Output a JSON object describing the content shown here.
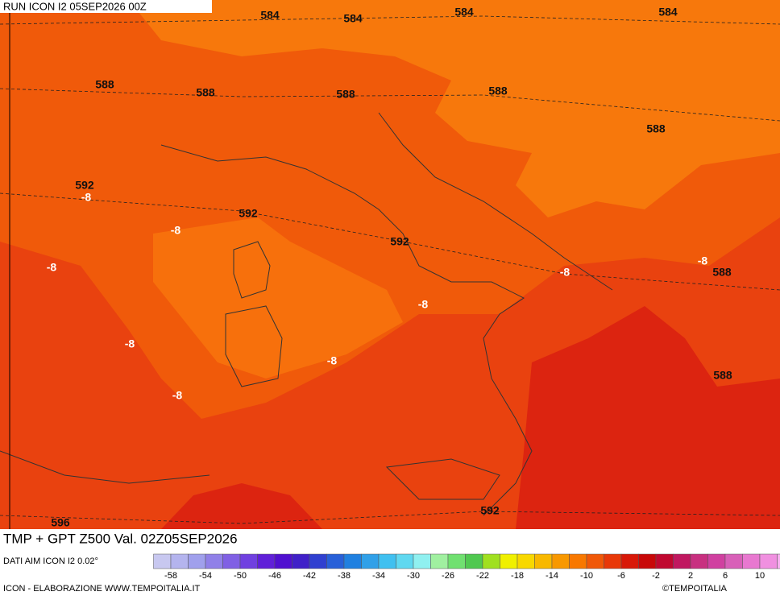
{
  "header": {
    "run": "RUN ICON I2 05SEP2026 00Z"
  },
  "map": {
    "contour_labels": [
      "584",
      "584",
      "584",
      "584",
      "588",
      "588",
      "588",
      "588",
      "588",
      "588",
      "588",
      "592",
      "592",
      "592",
      "592",
      "596",
      "-8",
      "-8",
      "-8",
      "-8",
      "-8",
      "-8",
      "-8",
      "-8",
      "-8"
    ]
  },
  "footer": {
    "title": "TMP + GPT Z500 Val. 02Z05SEP2026",
    "source": "DATI AIM ICON I2 0.02°",
    "credit": "ICON - ELABORAZIONE WWW.TEMPOITALIA.IT",
    "copyright": "©TEMPOITALIA"
  },
  "legend": {
    "labels": [
      "-58",
      "-54",
      "-50",
      "-46",
      "-42",
      "-38",
      "-34",
      "-30",
      "-26",
      "-22",
      "-18",
      "-14",
      "-10",
      "-6",
      "-2",
      "2",
      "6",
      "10"
    ],
    "colors": [
      "#c8c8f0",
      "#b4b4ee",
      "#a0a0ec",
      "#9080e8",
      "#8060e4",
      "#7040e0",
      "#6020d8",
      "#5010d0",
      "#4020c8",
      "#3040d0",
      "#2860d8",
      "#2080e0",
      "#30a0e8",
      "#40c0f0",
      "#60d8f0",
      "#90f0f0",
      "#a0f0a0",
      "#70e070",
      "#50c850",
      "#a0e020",
      "#f0f000",
      "#f8d800",
      "#f8b800",
      "#f89800",
      "#f87800",
      "#f05808",
      "#e83808",
      "#d81808",
      "#c80808",
      "#c00830",
      "#c01860",
      "#c83080",
      "#d040a0",
      "#d860b8",
      "#e878d0",
      "#f090e0",
      "#f8b0f0"
    ]
  }
}
